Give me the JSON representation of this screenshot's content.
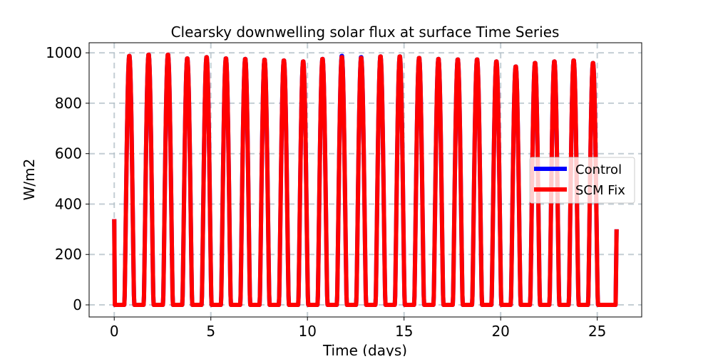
{
  "chart_data": {
    "type": "line",
    "title": "Clearsky downwelling solar flux at surface Time Series",
    "xlabel": "Time (days)",
    "ylabel": "W/m2",
    "xlim": [
      -1.3,
      27.3
    ],
    "ylim": [
      -48,
      1040
    ],
    "xticks": [
      0,
      5,
      10,
      15,
      20,
      25
    ],
    "yticks": [
      0,
      200,
      400,
      600,
      800,
      1000
    ],
    "grid": true,
    "legend_position": "center right",
    "x_start": 0,
    "x_end": 26.0,
    "start_value": 340,
    "end_value": 300,
    "sunrise_fraction": 0.25,
    "sunset_fraction": 0.75,
    "series": [
      {
        "name": "Control",
        "color": "#0000ff",
        "daily_peaks": [
          990,
          995,
          995,
          980,
          985,
          980,
          978,
          975,
          972,
          968,
          978,
          990,
          985,
          988,
          988,
          982,
          978,
          976,
          976,
          968,
          948,
          962,
          968,
          972,
          962
        ]
      },
      {
        "name": "SCM Fix",
        "color": "#ff0000",
        "daily_peaks": [
          990,
          995,
          995,
          980,
          985,
          980,
          978,
          975,
          972,
          968,
          978,
          985,
          982,
          988,
          988,
          982,
          978,
          976,
          976,
          968,
          948,
          962,
          968,
          972,
          962
        ]
      }
    ]
  },
  "legend": {
    "items": [
      {
        "label": "Control",
        "color": "#0000ff"
      },
      {
        "label": "SCM Fix",
        "color": "#ff0000"
      }
    ]
  }
}
